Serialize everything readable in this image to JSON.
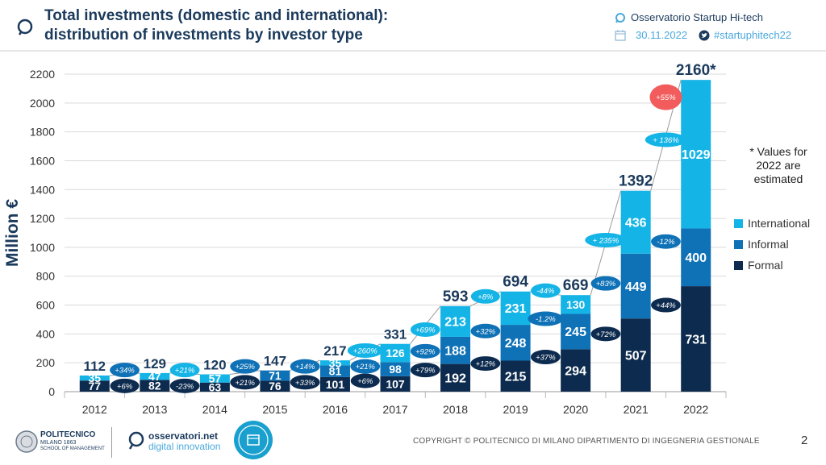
{
  "header": {
    "title_line1": "Total investments (domestic and international):",
    "title_line2": "distribution of investments by investor type",
    "observatory": "Osservatorio Startup Hi-tech",
    "date": "30.11.2022",
    "hashtag": "#startuphitech22"
  },
  "note": "* Values for 2022 are estimated",
  "footer": {
    "copyright": "COPYRIGHT © POLITECNICO DI MILANO DIPARTIMENTO DI INGEGNERIA GESTIONALE",
    "page_number": "2",
    "logo_poli_name": "POLITECNICO",
    "logo_poli_sub": "MILANO 1863",
    "logo_poli_school": "SCHOOL OF MANAGEMENT",
    "logo_obs_name": "osservatori.net",
    "logo_obs_sub": "digital innovation"
  },
  "chart_data": {
    "type": "bar",
    "stacked": true,
    "ylabel": "Million €",
    "ylim": [
      0,
      2200
    ],
    "yticks": [
      0,
      200,
      400,
      600,
      800,
      1000,
      1200,
      1400,
      1600,
      1800,
      2000,
      2200
    ],
    "categories": [
      "2012",
      "2013",
      "2014",
      "2015",
      "2016",
      "2017",
      "2018",
      "2019",
      "2020",
      "2021",
      "2022"
    ],
    "totals": [
      "112",
      "129",
      "120",
      "147",
      "217",
      "331",
      "593",
      "694",
      "669",
      "1392",
      "2160*"
    ],
    "series": [
      {
        "name": "Formal",
        "color": "#0d2b4e",
        "values": [
          77,
          82,
          63,
          76,
          101,
          107,
          192,
          215,
          294,
          507,
          731
        ]
      },
      {
        "name": "Informal",
        "color": "#0f71b6",
        "values": [
          null,
          null,
          null,
          71,
          81,
          98,
          188,
          248,
          245,
          449,
          400
        ]
      },
      {
        "name": "International",
        "color": "#15b4e6",
        "values": [
          35,
          47,
          57,
          null,
          35,
          126,
          213,
          231,
          130,
          436,
          1029
        ]
      }
    ],
    "growth_labels": [
      {
        "text": "+34%",
        "after": "2012",
        "at": 150,
        "series": "Informal"
      },
      {
        "text": "+6%",
        "after": "2012",
        "at": 40,
        "series": "Formal"
      },
      {
        "text": "+21%",
        "after": "2013",
        "at": 150,
        "series": "International"
      },
      {
        "text": "-23%",
        "after": "2013",
        "at": 40,
        "series": "Formal"
      },
      {
        "text": "+25%",
        "after": "2014",
        "at": 175,
        "series": "Informal"
      },
      {
        "text": "+21%",
        "after": "2014",
        "at": 65,
        "series": "Formal"
      },
      {
        "text": "+14%",
        "after": "2015",
        "at": 175,
        "series": "Informal"
      },
      {
        "text": "+33%",
        "after": "2015",
        "at": 65,
        "series": "Formal"
      },
      {
        "text": "+260%",
        "after": "2016",
        "at": 285,
        "series": "International"
      },
      {
        "text": "+21%",
        "after": "2016",
        "at": 175,
        "series": "Informal"
      },
      {
        "text": "+6%",
        "after": "2016",
        "at": 75,
        "series": "Formal"
      },
      {
        "text": "+69%",
        "after": "2017",
        "at": 430,
        "series": "International"
      },
      {
        "text": "+92%",
        "after": "2017",
        "at": 280,
        "series": "Informal"
      },
      {
        "text": "+79%",
        "after": "2017",
        "at": 150,
        "series": "Formal"
      },
      {
        "text": "+8%",
        "after": "2018",
        "at": 660,
        "series": "International"
      },
      {
        "text": "+32%",
        "after": "2018",
        "at": 420,
        "series": "Informal"
      },
      {
        "text": "+12%",
        "after": "2018",
        "at": 195,
        "series": "Formal"
      },
      {
        "text": "-44%",
        "after": "2019",
        "at": 700,
        "series": "International"
      },
      {
        "text": "-1.2%",
        "after": "2019",
        "at": 505,
        "series": "Informal"
      },
      {
        "text": "+37%",
        "after": "2019",
        "at": 240,
        "series": "Formal"
      },
      {
        "text": "+ 235%",
        "after": "2020",
        "at": 1050,
        "series": "International"
      },
      {
        "text": "+83%",
        "after": "2020",
        "at": 750,
        "series": "Informal"
      },
      {
        "text": "+72%",
        "after": "2020",
        "at": 400,
        "series": "Formal"
      },
      {
        "text": "+ 136%",
        "after": "2021",
        "at": 1745,
        "series": "International"
      },
      {
        "text": "-12%",
        "after": "2021",
        "at": 1040,
        "series": "Informal"
      },
      {
        "text": "+44%",
        "after": "2021",
        "at": 600,
        "series": "Formal"
      },
      {
        "text": "+55%",
        "after": "2021",
        "at": 2040,
        "series": "Total"
      }
    ]
  }
}
